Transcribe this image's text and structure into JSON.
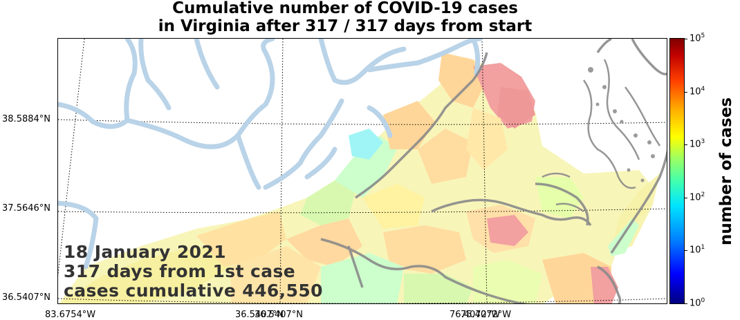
{
  "title": {
    "line1": "Cumulative number of COVID-19 cases",
    "line2": "in Virginia after 317 / 317 days from start"
  },
  "overlay": {
    "date": "18 January 2021",
    "days": "317 days from 1st case",
    "cases": "cases cumulative 446,550"
  },
  "axes": {
    "lat_labels": [
      "38.5884°N",
      "37.5646°N",
      "36.5407°N"
    ],
    "lon_labels": [
      "83.6754°W",
      "36.5407°N",
      "36.5407°N",
      "76.4072°W",
      "75.4072°W"
    ]
  },
  "colorbar": {
    "label": "number of cases",
    "scale": "log",
    "ticks": [
      {
        "base": "10",
        "exp": "0"
      },
      {
        "base": "10",
        "exp": "1"
      },
      {
        "base": "10",
        "exp": "2"
      },
      {
        "base": "10",
        "exp": "3"
      },
      {
        "base": "10",
        "exp": "4"
      },
      {
        "base": "10",
        "exp": "5"
      }
    ],
    "colormap": "jet"
  },
  "colors": {
    "river": "#b9d3e8",
    "border": "#7f7f7f",
    "high": "#f2a0a0",
    "mid": "#ffd699",
    "low": "#e6ffaa",
    "lower": "#c6ffcc",
    "cyan": "#9ff5f5"
  }
}
